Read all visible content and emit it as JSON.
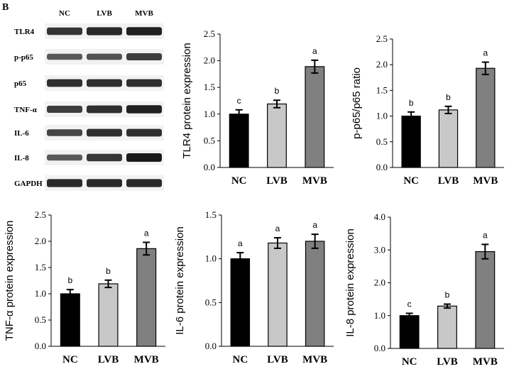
{
  "figure": {
    "panel_label": "B",
    "blot": {
      "lanes": [
        "NC",
        "LVB",
        "MVB"
      ],
      "rows": [
        {
          "label": "TLR4",
          "intensities": [
            0.82,
            0.9,
            0.95
          ]
        },
        {
          "label": "p-p65",
          "intensities": [
            0.55,
            0.6,
            0.75
          ]
        },
        {
          "label": "p65",
          "intensities": [
            0.85,
            0.85,
            0.85
          ]
        },
        {
          "label": "TNF-α",
          "intensities": [
            0.75,
            0.85,
            0.95
          ]
        },
        {
          "label": "IL-6",
          "intensities": [
            0.7,
            0.85,
            0.85
          ]
        },
        {
          "label": "IL-8",
          "intensities": [
            0.55,
            0.8,
            1.0
          ]
        },
        {
          "label": "GAPDH",
          "intensities": [
            0.9,
            0.9,
            0.9
          ]
        }
      ]
    }
  },
  "colors": {
    "NC": "#000000",
    "LVB": "#c8c8c8",
    "MVB": "#808080"
  },
  "chart_data": [
    {
      "type": "bar",
      "categories": [
        "NC",
        "LVB",
        "MVB"
      ],
      "values": [
        1.0,
        1.19,
        1.89
      ],
      "errors": [
        0.08,
        0.07,
        0.12
      ],
      "significance": [
        "c",
        "b",
        "a"
      ],
      "title": "",
      "xlabel": "",
      "ylabel": "TLR4 protein expression",
      "ylim": [
        0,
        2.5
      ],
      "yticks": [
        "0.0",
        "0.5",
        "1.0",
        "1.5",
        "2.0",
        "2.5"
      ]
    },
    {
      "type": "bar",
      "categories": [
        "NC",
        "LVB",
        "MVB"
      ],
      "values": [
        1.0,
        1.12,
        1.93
      ],
      "errors": [
        0.08,
        0.07,
        0.12
      ],
      "significance": [
        "b",
        "b",
        "a"
      ],
      "title": "",
      "xlabel": "",
      "ylabel": "p-p65/p65 ratio",
      "ylim": [
        0,
        2.5
      ],
      "yticks": [
        "0.0",
        "0.5",
        "1.0",
        "1.5",
        "2.0",
        "2.5"
      ]
    },
    {
      "type": "bar",
      "categories": [
        "NC",
        "LVB",
        "MVB"
      ],
      "values": [
        1.0,
        1.19,
        1.86
      ],
      "errors": [
        0.08,
        0.07,
        0.12
      ],
      "significance": [
        "b",
        "b",
        "a"
      ],
      "title": "",
      "xlabel": "",
      "ylabel": "TNF-α protein expression",
      "ylim": [
        0,
        2.5
      ],
      "yticks": [
        "0.0",
        "0.5",
        "1.0",
        "1.5",
        "2.0",
        "2.5"
      ]
    },
    {
      "type": "bar",
      "categories": [
        "NC",
        "LVB",
        "MVB"
      ],
      "values": [
        1.0,
        1.18,
        1.2
      ],
      "errors": [
        0.07,
        0.06,
        0.08
      ],
      "significance": [
        "a",
        "a",
        "a"
      ],
      "title": "",
      "xlabel": "",
      "ylabel": "IL-6 protein expression",
      "ylim": [
        0,
        1.5
      ],
      "yticks": [
        "0.0",
        "0.5",
        "1.0",
        "1.5"
      ]
    },
    {
      "type": "bar",
      "categories": [
        "NC",
        "LVB",
        "MVB"
      ],
      "values": [
        1.0,
        1.29,
        2.95
      ],
      "errors": [
        0.07,
        0.06,
        0.22
      ],
      "significance": [
        "c",
        "b",
        "a"
      ],
      "title": "",
      "xlabel": "",
      "ylabel": "IL-8 protein expression",
      "ylim": [
        0,
        4.0
      ],
      "yticks": [
        "0.0",
        "1.0",
        "2.0",
        "3.0",
        "4.0"
      ]
    }
  ]
}
